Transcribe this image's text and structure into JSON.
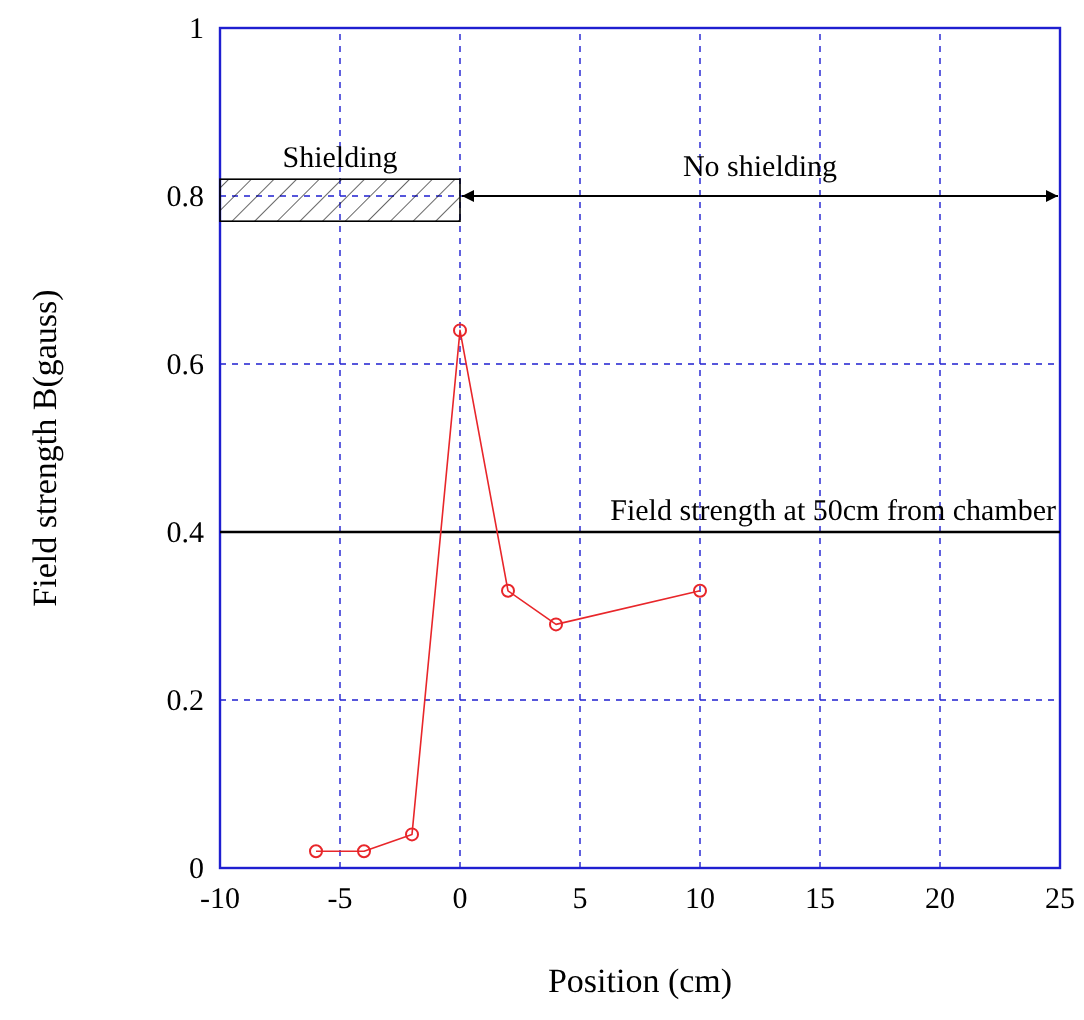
{
  "chart_data": {
    "type": "line",
    "xlabel": "Position (cm)",
    "ylabel": "Field strength B(gauss)",
    "x": [
      -6,
      -4,
      -2,
      0,
      2,
      4,
      10
    ],
    "series": [
      {
        "color": "#e8262a",
        "values": [
          0.02,
          0.02,
          0.04,
          0.64,
          0.33,
          0.29,
          0.33
        ]
      }
    ],
    "xlim": [
      -10,
      25
    ],
    "xticks": [
      -10,
      -5,
      0,
      5,
      10,
      15,
      20,
      25
    ],
    "ylim": [
      0,
      1
    ],
    "yticks": [
      0,
      0.2,
      0.4,
      0.6,
      0.8,
      1
    ],
    "grid": true,
    "marker": "circle",
    "line_style": "solid",
    "ref_lines": [
      {
        "axis": "y",
        "value": 0.4,
        "label": "Field strength at 50cm from chamber",
        "color": "#000000"
      }
    ],
    "annotations": [
      "Shielding",
      "No shielding"
    ]
  }
}
